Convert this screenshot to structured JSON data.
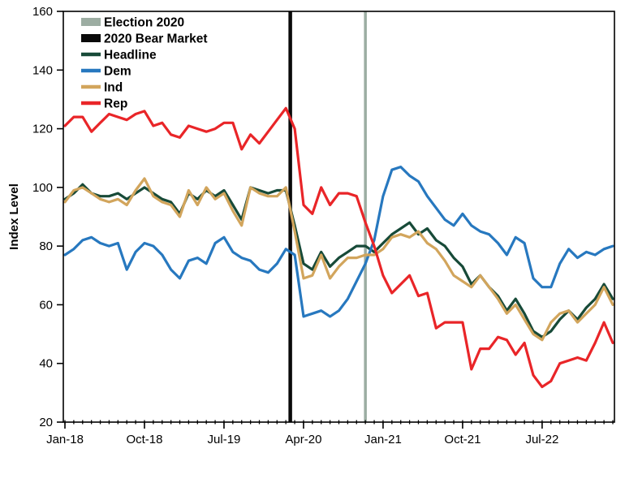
{
  "chart_data": {
    "type": "line",
    "title": "",
    "xlabel": "",
    "ylabel": "Index Level",
    "ylim": [
      20,
      160
    ],
    "yticks": [
      20,
      40,
      60,
      80,
      100,
      120,
      140,
      160
    ],
    "xtick_indices": [
      0,
      9,
      18,
      27,
      36,
      45,
      54
    ],
    "grid": false,
    "legend_position": "top-left-inside",
    "frame_color": "#000000",
    "x": [
      "Jan-18",
      "Feb-18",
      "Mar-18",
      "Apr-18",
      "May-18",
      "Jun-18",
      "Jul-18",
      "Aug-18",
      "Sep-18",
      "Oct-18",
      "Nov-18",
      "Dec-18",
      "Jan-19",
      "Feb-19",
      "Mar-19",
      "Apr-19",
      "May-19",
      "Jun-19",
      "Jul-19",
      "Aug-19",
      "Sep-19",
      "Oct-19",
      "Nov-19",
      "Dec-19",
      "Jan-20",
      "Feb-20",
      "Mar-20",
      "Apr-20",
      "May-20",
      "Jun-20",
      "Jul-20",
      "Aug-20",
      "Sep-20",
      "Oct-20",
      "Nov-20",
      "Dec-20",
      "Jan-21",
      "Feb-21",
      "Mar-21",
      "Apr-21",
      "May-21",
      "Jun-21",
      "Jul-21",
      "Aug-21",
      "Sep-21",
      "Oct-21",
      "Nov-21",
      "Dec-21",
      "Jan-22",
      "Feb-22",
      "Mar-22",
      "Apr-22",
      "May-22",
      "Jun-22",
      "Jul-22",
      "Aug-22",
      "Sep-22",
      "Oct-22",
      "Nov-22",
      "Dec-22",
      "Jan-23",
      "Feb-23",
      "Mar-23"
    ],
    "series": [
      {
        "name": "Headline",
        "color": "#174a38",
        "values": [
          96,
          98,
          101,
          98,
          97,
          97,
          98,
          96,
          98,
          100,
          98,
          96,
          95,
          91,
          98,
          96,
          99,
          97,
          99,
          94,
          89,
          100,
          99,
          98,
          99,
          99,
          87,
          74,
          72,
          78,
          73,
          76,
          78,
          80,
          80,
          78,
          81,
          84,
          86,
          88,
          84,
          86,
          82,
          80,
          76,
          73,
          67,
          70,
          66,
          63,
          58,
          62,
          57,
          51,
          49,
          51,
          55,
          58,
          55,
          59,
          62,
          67,
          62
        ]
      },
      {
        "name": "Dem",
        "color": "#2778bf",
        "values": [
          77,
          79,
          82,
          83,
          81,
          80,
          81,
          72,
          78,
          81,
          80,
          77,
          72,
          69,
          75,
          76,
          74,
          81,
          83,
          78,
          76,
          75,
          72,
          71,
          74,
          79,
          77,
          56,
          57,
          58,
          56,
          58,
          62,
          68,
          74,
          82,
          97,
          106,
          107,
          104,
          102,
          97,
          93,
          89,
          87,
          91,
          87,
          85,
          84,
          81,
          77,
          83,
          81,
          69,
          66,
          66,
          74,
          79,
          76,
          78,
          77,
          79,
          80
        ]
      },
      {
        "name": "Ind",
        "color": "#d2a55c",
        "values": [
          95,
          99,
          100,
          98,
          96,
          95,
          96,
          94,
          99,
          103,
          97,
          95,
          94,
          90,
          99,
          94,
          100,
          96,
          98,
          92,
          87,
          100,
          98,
          97,
          97,
          100,
          85,
          69,
          70,
          77,
          69,
          73,
          76,
          76,
          77,
          77,
          79,
          83,
          84,
          83,
          85,
          81,
          79,
          75,
          70,
          68,
          66,
          70,
          66,
          62,
          57,
          60,
          55,
          50,
          48,
          54,
          57,
          58,
          54,
          57,
          60,
          66,
          60
        ]
      },
      {
        "name": "Rep",
        "color": "#e92528",
        "values": [
          121,
          124,
          124,
          119,
          122,
          125,
          124,
          123,
          125,
          126,
          121,
          122,
          118,
          117,
          121,
          120,
          119,
          120,
          122,
          122,
          113,
          118,
          115,
          119,
          123,
          127,
          120,
          94,
          91,
          100,
          94,
          98,
          98,
          97,
          88,
          80,
          70,
          64,
          67,
          70,
          63,
          64,
          52,
          54,
          54,
          54,
          38,
          45,
          45,
          49,
          48,
          43,
          47,
          36,
          32,
          34,
          40,
          41,
          42,
          41,
          47,
          54,
          47
        ]
      }
    ],
    "vlines": [
      {
        "label": "Election 2020",
        "at": "Nov-20",
        "month_index": 34,
        "color": "#9cada2",
        "stroke_width": 3.5
      },
      {
        "label": "2020 Bear Market",
        "at": "Mar-20",
        "month_index": 25.5,
        "color": "#0a0a0a",
        "stroke_width": 4.5
      }
    ],
    "legend": [
      {
        "label": "Election 2020",
        "swatch": "thick-bar",
        "color": "#9cada2"
      },
      {
        "label": "2020 Bear Market",
        "swatch": "thick-bar",
        "color": "#0a0a0a"
      },
      {
        "label": "Headline",
        "swatch": "line",
        "color": "#174a38"
      },
      {
        "label": "Dem",
        "swatch": "line",
        "color": "#2778bf"
      },
      {
        "label": "Ind",
        "swatch": "line",
        "color": "#d2a55c"
      },
      {
        "label": "Rep",
        "swatch": "line",
        "color": "#e92528"
      }
    ]
  }
}
